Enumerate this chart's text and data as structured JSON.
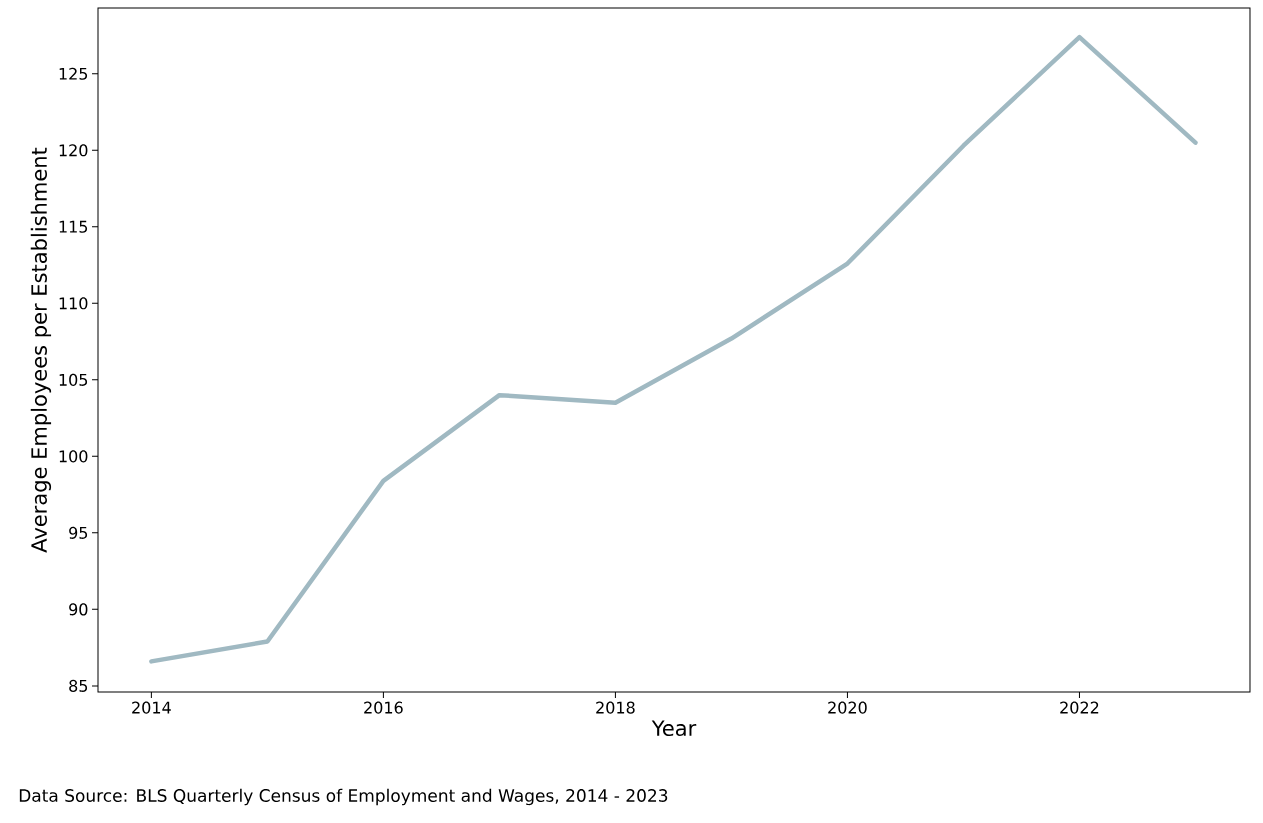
{
  "chart_data": {
    "type": "line",
    "xlabel": "Year",
    "ylabel": "Average Employees per Establishment",
    "x": [
      2014,
      2015,
      2016,
      2017,
      2018,
      2019,
      2020,
      2021,
      2022,
      2023
    ],
    "series": [
      {
        "color": "#a0b9c2",
        "values": [
          86.6,
          87.9,
          98.4,
          104.0,
          103.5,
          107.7,
          112.6,
          120.3,
          127.4,
          120.5
        ]
      }
    ],
    "xlim": [
      2013.54,
      2023.47
    ],
    "ylim": [
      84.6,
      129.3
    ],
    "xticks": [
      2014,
      2016,
      2018,
      2020,
      2022
    ],
    "yticks": [
      85,
      90,
      95,
      100,
      105,
      110,
      115,
      120,
      125
    ],
    "grid": false,
    "marker": "none",
    "line_style": "solid",
    "annotations": [
      "Data Source: BLS Quarterly Census of Employment and Wages, 2014 - 2023"
    ]
  }
}
